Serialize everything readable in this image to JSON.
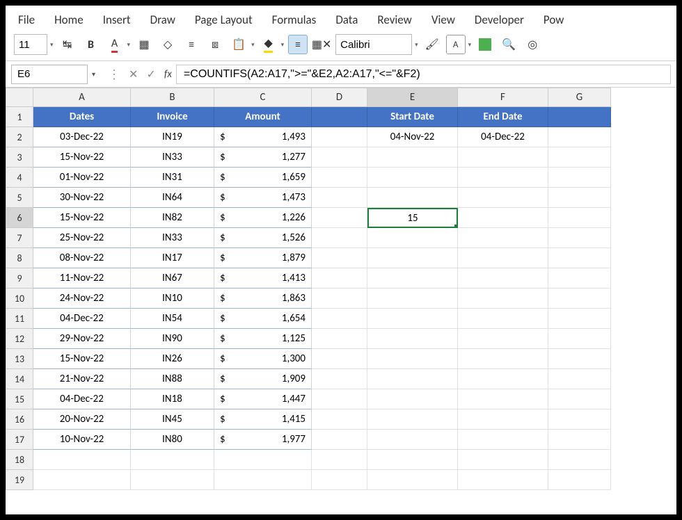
{
  "menu": [
    "File",
    "Home",
    "Insert",
    "Draw",
    "Page Layout",
    "Formulas",
    "Data",
    "Review",
    "View",
    "Developer",
    "Pow"
  ],
  "toolbar": {
    "font_size": "11",
    "font_name": "Calibri"
  },
  "formula_bar": {
    "cell_ref": "E6",
    "formula": "=COUNTIFS(A2:A17,\">=\"&E2,A2:A17,\"<=\"&F2)"
  },
  "columns": [
    "A",
    "B",
    "C",
    "D",
    "E",
    "F",
    "G"
  ],
  "rows": [
    "1",
    "2",
    "3",
    "4",
    "5",
    "6",
    "7",
    "8",
    "9",
    "10",
    "11",
    "12",
    "13",
    "14",
    "15",
    "16",
    "17",
    "18",
    "19"
  ],
  "active_row": "6",
  "active_col": "E",
  "table_headers": {
    "a": "Dates",
    "b": "Invoice",
    "c": "Amount"
  },
  "data": [
    {
      "date": "03-Dec-22",
      "inv": "IN19",
      "amt": "1,493"
    },
    {
      "date": "15-Nov-22",
      "inv": "IN33",
      "amt": "1,277"
    },
    {
      "date": "01-Nov-22",
      "inv": "IN31",
      "amt": "1,659"
    },
    {
      "date": "30-Nov-22",
      "inv": "IN64",
      "amt": "1,473"
    },
    {
      "date": "15-Nov-22",
      "inv": "IN82",
      "amt": "1,226"
    },
    {
      "date": "25-Nov-22",
      "inv": "IN33",
      "amt": "1,526"
    },
    {
      "date": "08-Nov-22",
      "inv": "IN17",
      "amt": "1,879"
    },
    {
      "date": "11-Nov-22",
      "inv": "IN67",
      "amt": "1,413"
    },
    {
      "date": "24-Nov-22",
      "inv": "IN10",
      "amt": "1,863"
    },
    {
      "date": "04-Dec-22",
      "inv": "IN54",
      "amt": "1,654"
    },
    {
      "date": "29-Nov-22",
      "inv": "IN90",
      "amt": "1,125"
    },
    {
      "date": "15-Nov-22",
      "inv": "IN26",
      "amt": "1,300"
    },
    {
      "date": "21-Nov-22",
      "inv": "IN88",
      "amt": "1,909"
    },
    {
      "date": "04-Dec-22",
      "inv": "IN18",
      "amt": "1,447"
    },
    {
      "date": "20-Nov-22",
      "inv": "IN45",
      "amt": "1,415"
    },
    {
      "date": "10-Nov-22",
      "inv": "IN80",
      "amt": "1,977"
    }
  ],
  "side": {
    "start_label": "Start Date",
    "end_label": "End Date",
    "start_val": "04-Nov-22",
    "end_val": "04-Dec-22",
    "result": "15"
  },
  "currency": "$",
  "colors": {
    "header_bg": "#4472c4",
    "header_fg": "#ffffff",
    "table_border": "#9ab5de",
    "selection": "#1a7f37"
  }
}
